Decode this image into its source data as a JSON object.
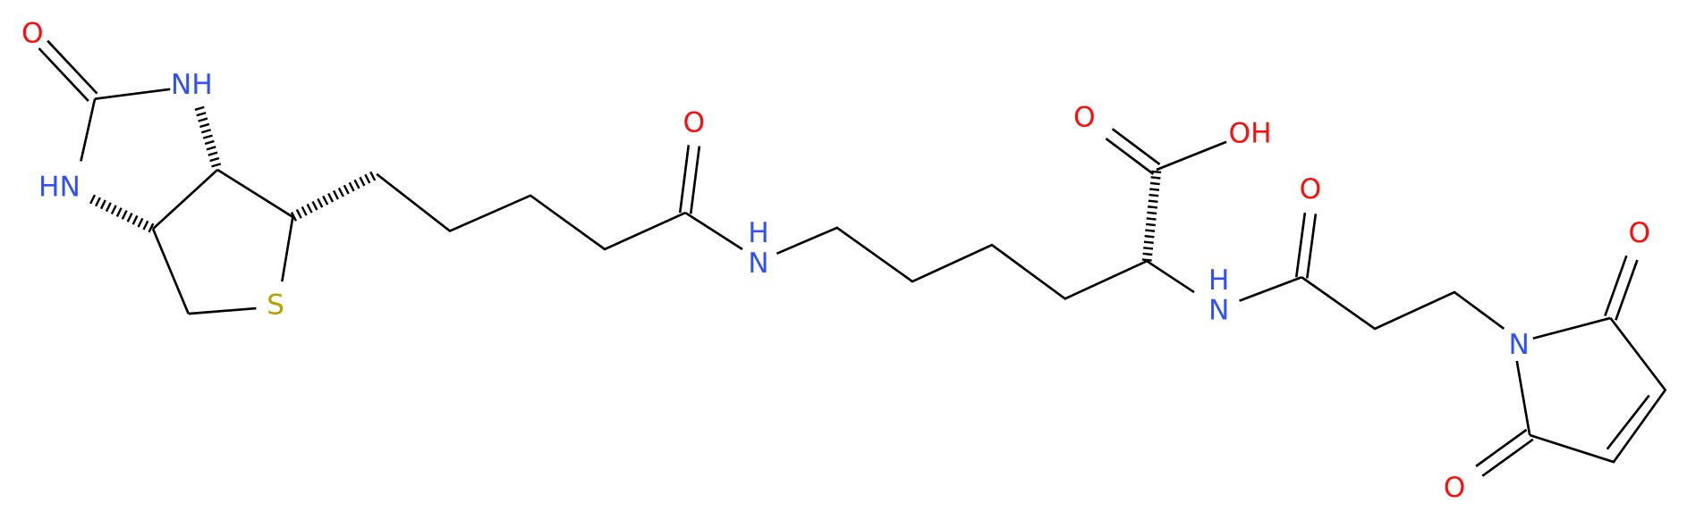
{
  "atoms": [
    {
      "label": "O"
    },
    {
      "label": "NH"
    },
    {
      "label": "HN"
    },
    {
      "label": "S"
    },
    {
      "label": "O"
    },
    {
      "label": "N",
      "h": "H"
    },
    {
      "label": "O"
    },
    {
      "label": "OH"
    },
    {
      "label": "O"
    },
    {
      "label": "N",
      "h": "H"
    },
    {
      "label": "O"
    },
    {
      "label": "N"
    },
    {
      "label": "O"
    }
  ]
}
